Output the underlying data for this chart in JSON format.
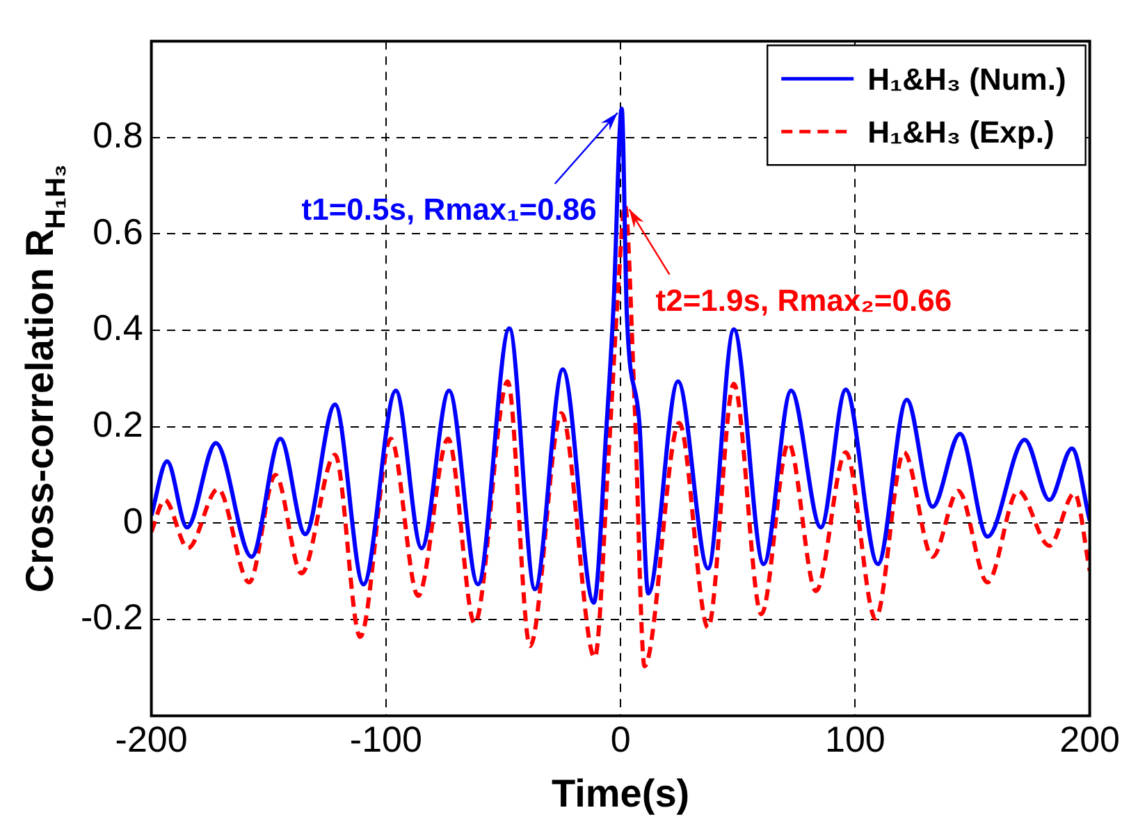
{
  "chart_data": {
    "type": "line",
    "xlabel": "Time(s)",
    "ylabel": "Cross-correlation R$_{H₁H₃}$",
    "xlim": [
      -200,
      200
    ],
    "xticks": [
      -200,
      -100,
      0,
      100,
      200
    ],
    "ylim": [
      -0.4,
      1
    ],
    "yticks": [
      -0.2,
      0,
      0.2,
      0.4,
      0.6,
      0.8
    ],
    "grid": true,
    "legend": "top right",
    "marker": "none",
    "annotations": [
      {
        "text": "t1=0.5s, Rmax₁=0.86",
        "x": 0.5,
        "y": 0.86
      },
      {
        "text": "t2=1.9s, Rmax₂=0.66",
        "x": 1.9,
        "y": 0.66
      }
    ],
    "series": [
      {
        "name": "H₁&H₃ (Num.)",
        "color": "#0000ff",
        "line_style": "solid",
        "x": [
          -200,
          -193.3,
          -184.8,
          -172.5,
          -157.3,
          -145,
          -134.4,
          -121.7,
          -109.6,
          -95.8,
          -84.8,
          -73.1,
          -60.8,
          -47.4,
          -36.5,
          -24.6,
          -11.4,
          -6,
          -3,
          0.5,
          2.7,
          8,
          11.8,
          24.5,
          37.3,
          48.3,
          61,
          72.7,
          85.4,
          96,
          109.7,
          122,
          133,
          144.7,
          156.4,
          172.3,
          182.8,
          192.4,
          200
        ],
        "values": [
          0.016,
          0.128,
          -0.009,
          0.166,
          -0.07,
          0.175,
          -0.023,
          0.246,
          -0.127,
          0.275,
          -0.052,
          0.275,
          -0.127,
          0.404,
          -0.137,
          0.319,
          -0.165,
          0.2,
          0.45,
          0.86,
          0.43,
          0.21,
          -0.146,
          0.294,
          -0.094,
          0.402,
          -0.085,
          0.275,
          -0.009,
          0.277,
          -0.085,
          0.256,
          0.034,
          0.185,
          -0.028,
          0.173,
          0.048,
          0.155,
          0.005
        ]
      },
      {
        "name": "H₁&H₃ (Exp.)",
        "color": "#ff0000",
        "line_style": "dashed",
        "x": [
          -200,
          -194.3,
          -184.4,
          -171.6,
          -158.3,
          -147.1,
          -136,
          -121.7,
          -111,
          -97.9,
          -86.3,
          -73.5,
          -62.2,
          -48.1,
          -38.6,
          -25.2,
          -11,
          -5,
          -1,
          1.9,
          5.9,
          10.2,
          25,
          37.3,
          48.3,
          60,
          71.6,
          83.3,
          96,
          108.7,
          120.8,
          133,
          144,
          156.4,
          169.5,
          182.8,
          193.5,
          200
        ],
        "values": [
          -0.018,
          0.048,
          -0.052,
          0.071,
          -0.123,
          0.1,
          -0.104,
          0.142,
          -0.236,
          0.175,
          -0.151,
          0.175,
          -0.208,
          0.294,
          -0.255,
          0.228,
          -0.279,
          0.15,
          0.487,
          0.66,
          0.26,
          -0.297,
          0.208,
          -0.217,
          0.289,
          -0.189,
          0.166,
          -0.141,
          0.147,
          -0.198,
          0.147,
          -0.07,
          0.067,
          -0.123,
          0.067,
          -0.047,
          0.062,
          -0.099
        ]
      }
    ]
  }
}
